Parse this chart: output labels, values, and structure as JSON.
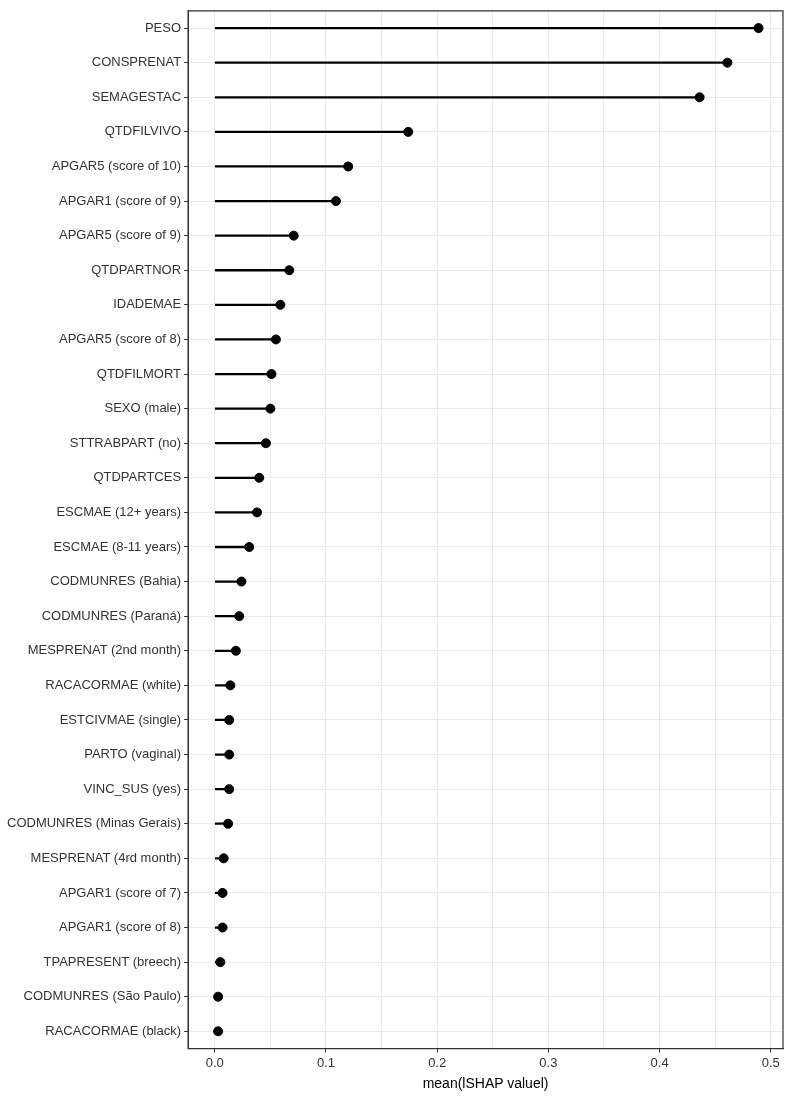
{
  "chart_data": {
    "type": "lollipop",
    "orientation": "horizontal",
    "xlabel": "mean(lSHAP valuel)",
    "categories": [
      "PESO",
      "CONSPRENAT",
      "SEMAGESTAC",
      "QTDFILVIVO",
      "APGAR5 (score of 10)",
      "APGAR1 (score of 9)",
      "APGAR5 (score of 9)",
      "QTDPARTNOR",
      "IDADEMAE",
      "APGAR5 (score of 8)",
      "QTDFILMORT",
      "SEXO (male)",
      "STTRABPART (no)",
      "QTDPARTCES",
      "ESCMAE (12+ years)",
      "ESCMAE (8-11 years)",
      "CODMUNRES (Bahia)",
      "CODMUNRES (Paraná)",
      "MESPRENAT (2nd month)",
      "RACACORMAE (white)",
      "ESTCIVMAE (single)",
      "PARTO (vaginal)",
      "VINC_SUS (yes)",
      "CODMUNRES (Minas Gerais)",
      "MESPRENAT (4rd month)",
      "APGAR1 (score of 7)",
      "APGAR1 (score of 8)",
      "TPAPRESENT (breech)",
      "CODMUNRES (São Paulo)",
      "RACACORMAE (black)"
    ],
    "values": [
      0.489,
      0.461,
      0.436,
      0.174,
      0.12,
      0.109,
      0.071,
      0.067,
      0.059,
      0.055,
      0.051,
      0.05,
      0.046,
      0.04,
      0.038,
      0.031,
      0.024,
      0.022,
      0.019,
      0.014,
      0.013,
      0.013,
      0.013,
      0.012,
      0.008,
      0.007,
      0.007,
      0.005,
      0.003,
      0.003
    ],
    "color": "#000000",
    "marker": "circle",
    "grid": true,
    "xlim": [
      -0.024,
      0.511
    ],
    "xticks": [
      {
        "value": 0,
        "label": "0.0"
      },
      {
        "value": 0.05,
        "label": null
      },
      0.1,
      {
        "value": 0.15,
        "label": null
      },
      0.2,
      {
        "value": 0.25,
        "label": null
      },
      0.3,
      {
        "value": 0.35,
        "label": null
      },
      0.4,
      {
        "value": 0.45,
        "label": null
      },
      0.5
    ]
  }
}
